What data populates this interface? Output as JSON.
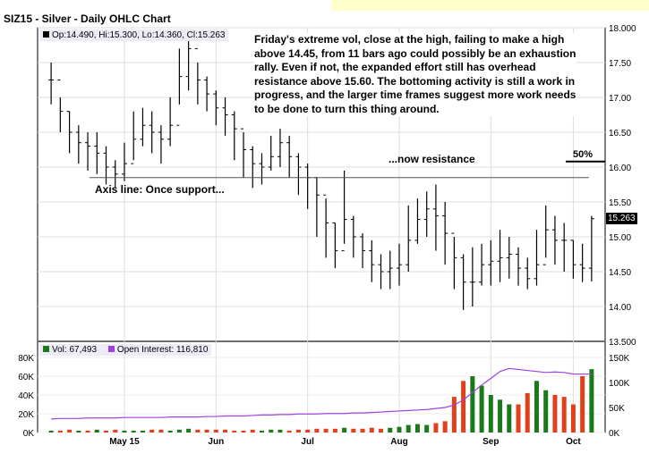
{
  "header": {
    "title": "SIZ15 - Silver - Daily OHLC Chart",
    "ohlc_legend": "Op:14.490, Hi:15.300, Lo:14.360, Cl:15.263"
  },
  "annotations": {
    "commentary": "Friday's extreme vol, close at the high, failing to make a high above 14.45, from 11 bars ago could possibly be an exhaustion rally.   Even if not, the expanded effort still has overhead resistance above 15.60.  The bottoming activity is still a work in progress, and the larger time frames suggest more work needs to be done to turn this thing around.",
    "resistance_label": "...now resistance",
    "support_label": "Axis line: Once support...",
    "pct_label": "50%"
  },
  "lower_panel": {
    "vol_legend": "Vol: 67,493",
    "oi_legend": "Open Interest: 116,810"
  },
  "colors": {
    "up_volume": "#1a7a1a",
    "down_volume": "#e0401a",
    "open_interest": "#a040e0",
    "axis_line": "#555555",
    "price_bar": "#000000",
    "last_price_bg": "#000000"
  },
  "chart_data": [
    {
      "type": "ohlc",
      "title": "SIZ15 - Silver - Daily OHLC Chart",
      "ylim": [
        13.5,
        18.0
      ],
      "yticks": [
        "13.500",
        "14.00",
        "14.50",
        "15.00",
        "15.50",
        "16.00",
        "16.50",
        "17.00",
        "17.50",
        "18.000"
      ],
      "xticks": [
        "May 15",
        "Jun",
        "Jul",
        "Aug",
        "Sep",
        "Oct"
      ],
      "xtick_index": [
        8,
        18,
        28,
        38,
        48,
        57
      ],
      "last_price": "15.263",
      "reference_lines": [
        {
          "label": "Axis line",
          "value": 15.85
        },
        {
          "label": "50%",
          "value": 16.08
        }
      ],
      "closes": [
        17.25,
        16.8,
        16.5,
        16.35,
        16.3,
        16.2,
        16.0,
        15.9,
        16.05,
        16.4,
        16.6,
        16.5,
        16.4,
        16.6,
        17.3,
        17.7,
        17.25,
        17.05,
        16.85,
        16.75,
        16.55,
        16.25,
        16.05,
        16.0,
        16.15,
        16.35,
        16.15,
        16.0,
        15.85,
        15.6,
        15.2,
        14.8,
        15.25,
        15.0,
        14.8,
        14.6,
        14.5,
        14.55,
        14.6,
        14.95,
        15.25,
        15.4,
        15.3,
        15.05,
        14.7,
        14.35,
        14.35,
        14.6,
        14.65,
        14.7,
        14.75,
        14.55,
        14.4,
        14.6,
        15.1,
        14.95,
        14.95,
        14.6,
        14.55,
        15.26
      ],
      "highs": [
        17.5,
        17.0,
        16.8,
        16.6,
        16.5,
        16.5,
        16.3,
        16.1,
        16.35,
        16.8,
        16.85,
        16.8,
        16.6,
        17.0,
        17.7,
        17.95,
        17.5,
        17.3,
        17.1,
        17.0,
        16.8,
        16.5,
        16.3,
        16.2,
        16.45,
        16.55,
        16.45,
        16.2,
        16.05,
        15.85,
        15.55,
        15.2,
        15.95,
        15.3,
        15.05,
        14.95,
        14.75,
        14.8,
        14.9,
        15.45,
        15.55,
        15.65,
        15.75,
        15.5,
        15.0,
        14.75,
        14.85,
        14.9,
        14.95,
        15.1,
        15.0,
        14.85,
        14.7,
        15.1,
        15.45,
        15.3,
        15.2,
        14.95,
        14.9,
        15.3
      ],
      "lows": [
        16.9,
        16.5,
        16.2,
        16.05,
        15.95,
        15.9,
        15.75,
        15.7,
        15.8,
        16.1,
        16.3,
        16.2,
        16.05,
        16.3,
        16.9,
        17.1,
        16.9,
        16.8,
        16.6,
        16.45,
        16.1,
        15.85,
        15.7,
        15.75,
        15.95,
        16.0,
        15.85,
        15.6,
        15.4,
        15.0,
        14.7,
        14.55,
        14.9,
        14.7,
        14.55,
        14.35,
        14.25,
        14.25,
        14.3,
        14.5,
        14.9,
        15.0,
        14.8,
        14.6,
        14.25,
        13.95,
        14.0,
        14.3,
        14.3,
        14.35,
        14.4,
        14.3,
        14.25,
        14.3,
        14.7,
        14.6,
        14.5,
        14.4,
        14.35,
        14.36
      ],
      "volume": {
        "ylim": [
          0,
          80000
        ],
        "yticks": [
          "0K",
          "20K",
          "40K",
          "60K",
          "80K"
        ],
        "values": [
          2,
          2,
          3,
          2,
          2,
          3,
          2,
          3,
          2,
          2,
          2,
          3,
          3,
          2,
          3,
          4,
          3,
          3,
          3,
          3,
          2,
          2,
          3,
          2,
          3,
          3,
          2,
          3,
          3,
          4,
          4,
          4,
          5,
          4,
          4,
          5,
          4,
          5,
          6,
          8,
          9,
          8,
          10,
          12,
          38,
          55,
          60,
          50,
          40,
          35,
          30,
          30,
          42,
          55,
          45,
          40,
          38,
          30,
          60,
          67.493
        ],
        "unit_scale": "K",
        "up": [
          1,
          0,
          0,
          1,
          0,
          1,
          0,
          0,
          1,
          1,
          1,
          0,
          0,
          1,
          1,
          1,
          0,
          0,
          0,
          0,
          0,
          0,
          0,
          1,
          1,
          1,
          0,
          0,
          0,
          0,
          0,
          0,
          1,
          0,
          0,
          0,
          0,
          1,
          1,
          1,
          1,
          1,
          0,
          0,
          0,
          0,
          1,
          1,
          1,
          1,
          1,
          0,
          0,
          1,
          1,
          0,
          0,
          0,
          0,
          1
        ]
      },
      "open_interest": {
        "ylim": [
          0,
          150000
        ],
        "yticks": [
          "0K",
          "50K",
          "100K",
          "150K"
        ],
        "values": [
          27,
          28,
          28,
          28,
          29,
          29,
          29,
          29,
          30,
          30,
          30,
          30,
          30,
          31,
          31,
          31,
          31,
          32,
          32,
          33,
          33,
          33,
          34,
          35,
          35,
          36,
          36,
          37,
          37,
          37,
          38,
          38,
          38,
          39,
          39,
          40,
          41,
          42,
          43,
          44,
          45,
          46,
          48,
          50,
          55,
          65,
          80,
          95,
          108,
          122,
          128,
          126,
          124,
          122,
          120,
          121,
          120,
          116.81,
          116.81,
          116.81
        ]
      },
      "legend": [
        "Vol: 67,493",
        "Open Interest: 116,810"
      ]
    }
  ]
}
